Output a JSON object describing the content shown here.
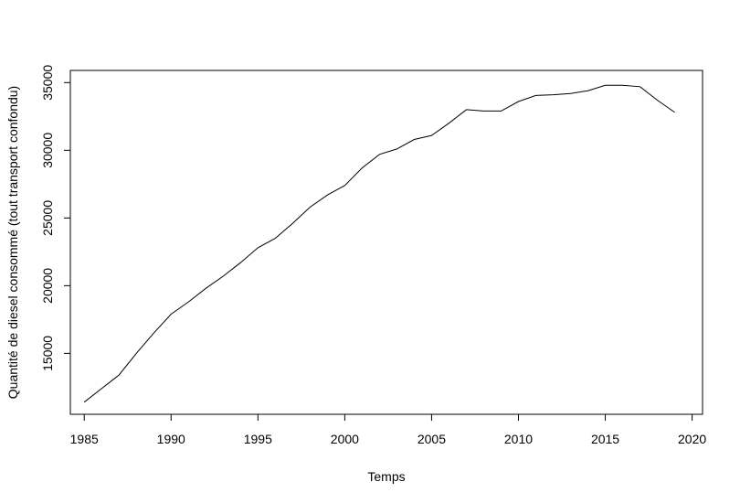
{
  "chart_data": {
    "type": "line",
    "title": "",
    "xlabel": "Temps",
    "ylabel": "Quantité de diesel consommé (tout transport confondu)",
    "xlim": [
      1984.2,
      2020.6
    ],
    "ylim": [
      10500,
      35900
    ],
    "x_ticks": [
      1985,
      1990,
      1995,
      2000,
      2005,
      2010,
      2015,
      2020
    ],
    "y_ticks": [
      15000,
      20000,
      25000,
      30000,
      35000
    ],
    "grid": false,
    "legend": "none",
    "line_color": "#000000",
    "series": [
      {
        "x": [
          1985,
          1986,
          1987,
          1988,
          1989,
          1990,
          1991,
          1992,
          1993,
          1994,
          1995,
          1996,
          1997,
          1998,
          1999,
          2000,
          2001,
          2002,
          2003,
          2004,
          2005,
          2006,
          2007,
          2008,
          2009,
          2010,
          2011,
          2012,
          2013,
          2014,
          2015,
          2016,
          2017,
          2018,
          2019
        ],
        "values": [
          11400,
          12400,
          13400,
          15000,
          16500,
          17900,
          18800,
          19800,
          20700,
          21700,
          22800,
          23500,
          24600,
          25800,
          26700,
          27400,
          28700,
          29700,
          30100,
          30800,
          31100,
          32000,
          33000,
          32900,
          32900,
          33600,
          34050,
          34100,
          34200,
          34400,
          34800,
          34800,
          34700,
          33700,
          32800
        ]
      }
    ]
  }
}
